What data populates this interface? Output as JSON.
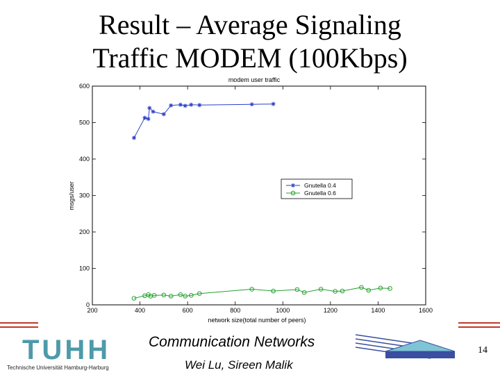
{
  "slide": {
    "title_line1": "Result – Average Signaling",
    "title_line2": "Traffic  MODEM (100Kbps)",
    "course": "Communication Networks",
    "authors": "Wei Lu, Sireen Malik",
    "page_number": "14",
    "logo_text": "TUHH",
    "logo_subtext": "Technische Universität Hamburg-Harburg",
    "colors": {
      "logo_blue": "#4e9aa9",
      "footer_red": "#c0392b",
      "deco_blue": "#3a4fa0",
      "deco_fill": "#7fc4d4"
    }
  },
  "chart_data": {
    "type": "line",
    "title": "modem user traffic",
    "xlabel": "network size(total number of peers)",
    "ylabel": "msgs/user",
    "xlim": [
      200,
      1600
    ],
    "ylim": [
      0,
      600
    ],
    "xticks": [
      200,
      400,
      600,
      800,
      1000,
      1200,
      1400,
      1600
    ],
    "yticks": [
      0,
      100,
      200,
      300,
      400,
      500,
      600
    ],
    "grid": false,
    "legend_position": "right",
    "series": [
      {
        "name": "Gnutella 0.4",
        "color": "#2b3fc7",
        "marker": "star",
        "points": [
          [
            375,
            458
          ],
          [
            420,
            513
          ],
          [
            435,
            510
          ],
          [
            440,
            540
          ],
          [
            455,
            530
          ],
          [
            500,
            523
          ],
          [
            530,
            547
          ],
          [
            570,
            549
          ],
          [
            590,
            546
          ],
          [
            615,
            549
          ],
          [
            650,
            548
          ],
          [
            870,
            550
          ],
          [
            960,
            551
          ]
        ]
      },
      {
        "name": "Gnutella 0.6",
        "color": "#23a02d",
        "marker": "circle",
        "points": [
          [
            375,
            18
          ],
          [
            420,
            25
          ],
          [
            435,
            28
          ],
          [
            445,
            24
          ],
          [
            460,
            26
          ],
          [
            500,
            27
          ],
          [
            530,
            24
          ],
          [
            570,
            28
          ],
          [
            590,
            24
          ],
          [
            615,
            26
          ],
          [
            650,
            31
          ],
          [
            870,
            43
          ],
          [
            960,
            38
          ],
          [
            1060,
            42
          ],
          [
            1090,
            34
          ],
          [
            1160,
            43
          ],
          [
            1220,
            37
          ],
          [
            1250,
            38
          ],
          [
            1330,
            48
          ],
          [
            1360,
            40
          ],
          [
            1410,
            46
          ],
          [
            1450,
            45
          ]
        ]
      }
    ]
  }
}
